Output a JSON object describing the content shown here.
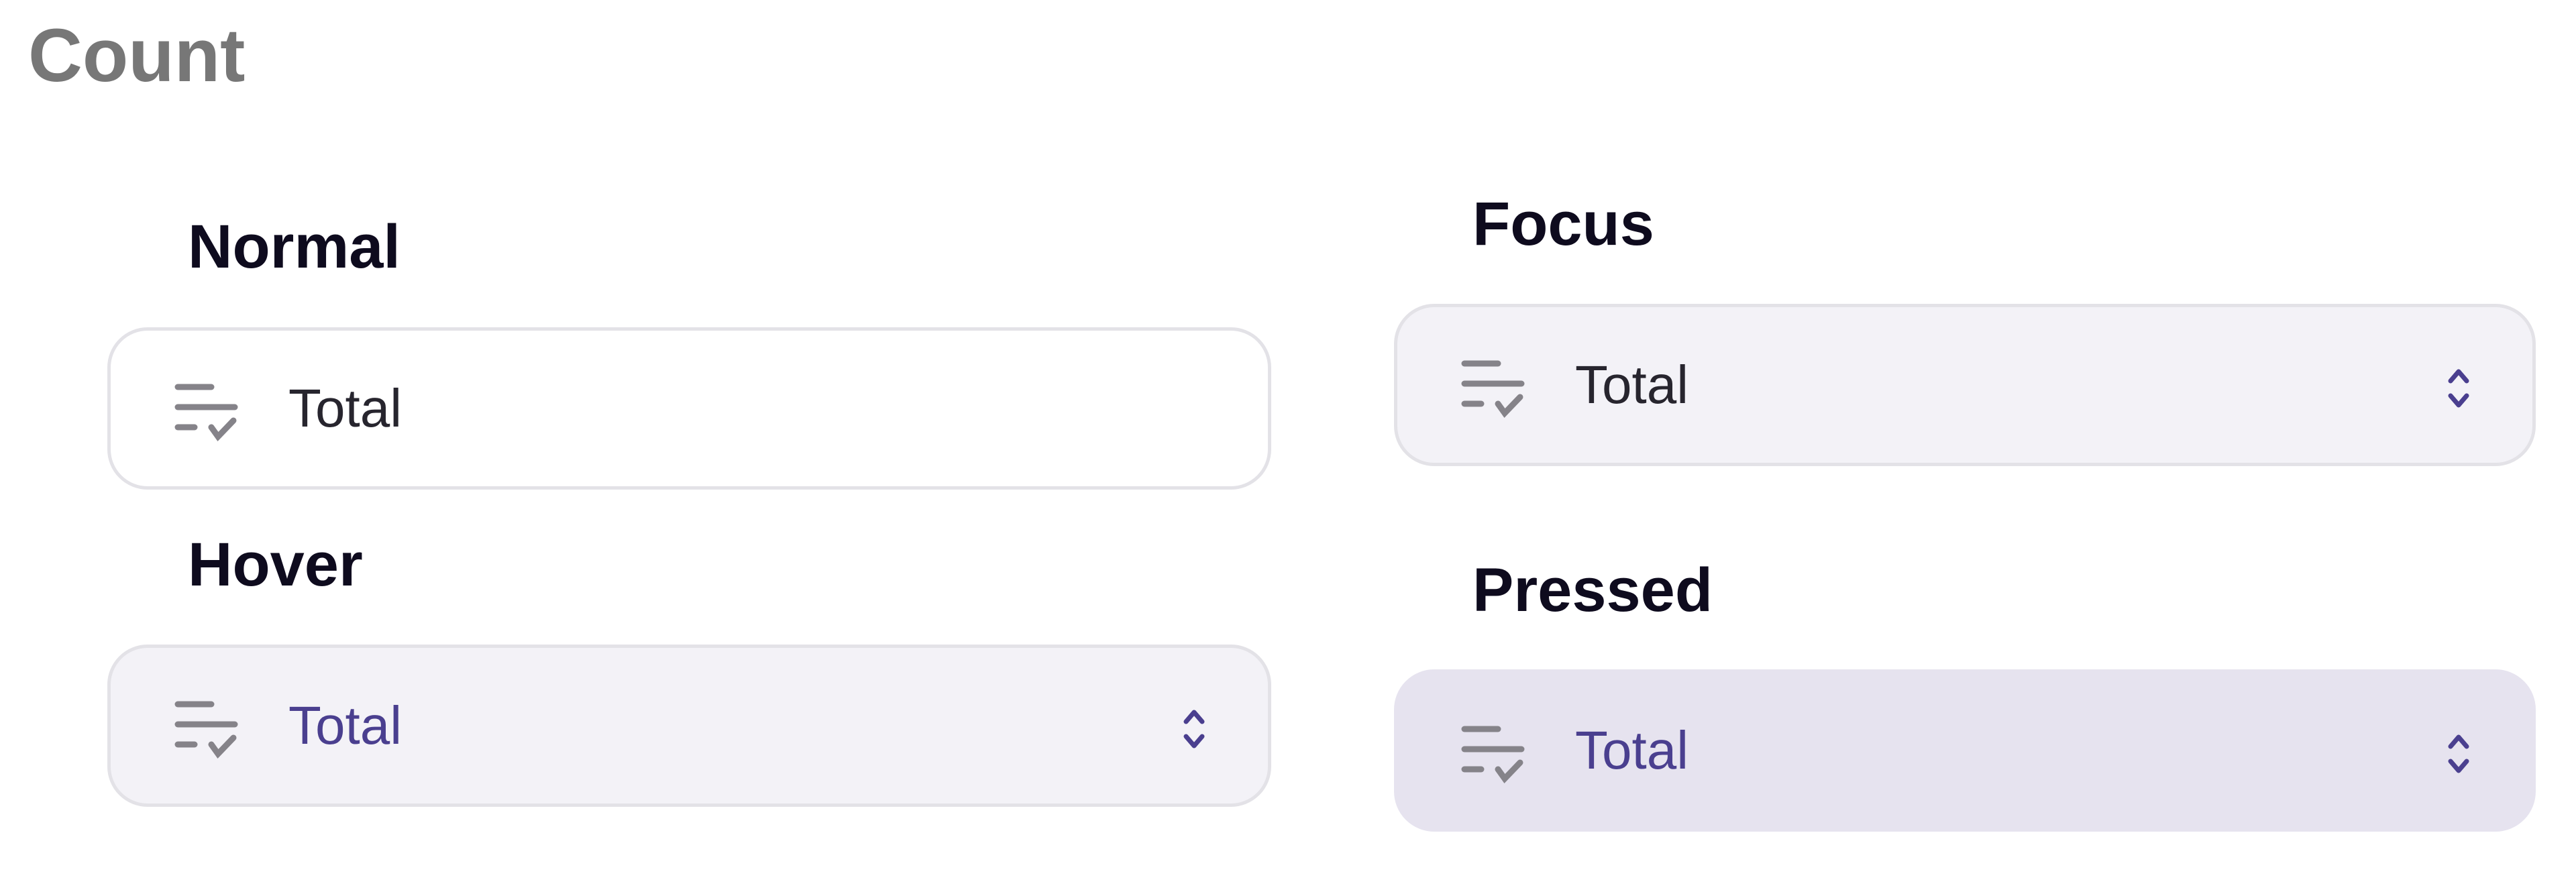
{
  "title": "Count",
  "states": {
    "normal": {
      "label": "Normal",
      "value": "Total"
    },
    "hover": {
      "label": "Hover",
      "value": "Total"
    },
    "focus": {
      "label": "Focus",
      "value": "Total"
    },
    "pressed": {
      "label": "Pressed",
      "value": "Total"
    }
  },
  "icons": {
    "leading": "list-check-icon",
    "trailing": "chevron-up-down-icon"
  },
  "colors": {
    "accent": "#4a3f8f",
    "icon": "#858389",
    "hover_bg": "#f3f2f7",
    "pressed_bg": "#e6e3ef",
    "border": "#e3e2e7"
  }
}
